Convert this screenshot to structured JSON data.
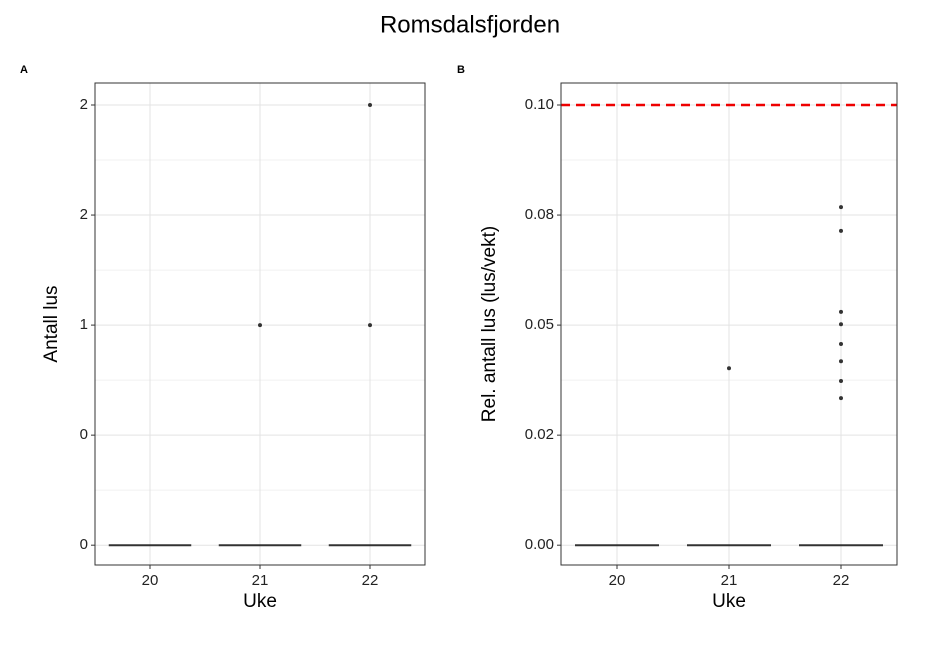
{
  "title": "Romsdalsfjorden",
  "chart_data": [
    {
      "type": "box",
      "panel_label": "A",
      "x_label": "Uke",
      "y_label": "Antall lus",
      "categories": [
        "20",
        "21",
        "22"
      ],
      "q1": [
        0,
        0,
        0
      ],
      "median": [
        0,
        0,
        0
      ],
      "q3": [
        0,
        0,
        0
      ],
      "whisker_low": [
        0,
        0,
        0
      ],
      "whisker_high": [
        0,
        0,
        0
      ],
      "outliers": [
        [],
        [
          1
        ],
        [
          1,
          2
        ]
      ],
      "ylim": [
        -0.09,
        2.1
      ],
      "yticks": [
        0,
        {
          "value": 0.5,
          "label": "0"
        },
        1,
        {
          "value": 1.5,
          "label": "2"
        },
        2
      ],
      "grid": true,
      "color": "#333333"
    },
    {
      "type": "box",
      "panel_label": "B",
      "x_label": "Uke",
      "y_label": "Rel. antall lus (lus/vekt)",
      "categories": [
        "20",
        "21",
        "22"
      ],
      "q1": [
        0,
        0,
        0
      ],
      "median": [
        0,
        0,
        0
      ],
      "q3": [
        0,
        0,
        0
      ],
      "whisker_low": [
        0,
        0,
        0
      ],
      "whisker_high": [
        0,
        0,
        0
      ],
      "outliers": [
        [],
        [
          0.0402
        ],
        [
          0.0768,
          0.0714,
          0.053,
          0.0502,
          0.0457,
          0.0418,
          0.0373,
          0.0334
        ]
      ],
      "ylim": [
        -0.0045,
        0.105
      ],
      "yticks": [
        {
          "value": 0,
          "label": "0.00"
        },
        {
          "value": 0.025,
          "label": "0.02"
        },
        0.05,
        {
          "value": 0.075,
          "label": "0.08"
        },
        {
          "value": 0.1,
          "label": "0.10"
        }
      ],
      "hline": 0.1,
      "hline_color": "#ee0000",
      "grid": true,
      "color": "#333333"
    }
  ]
}
